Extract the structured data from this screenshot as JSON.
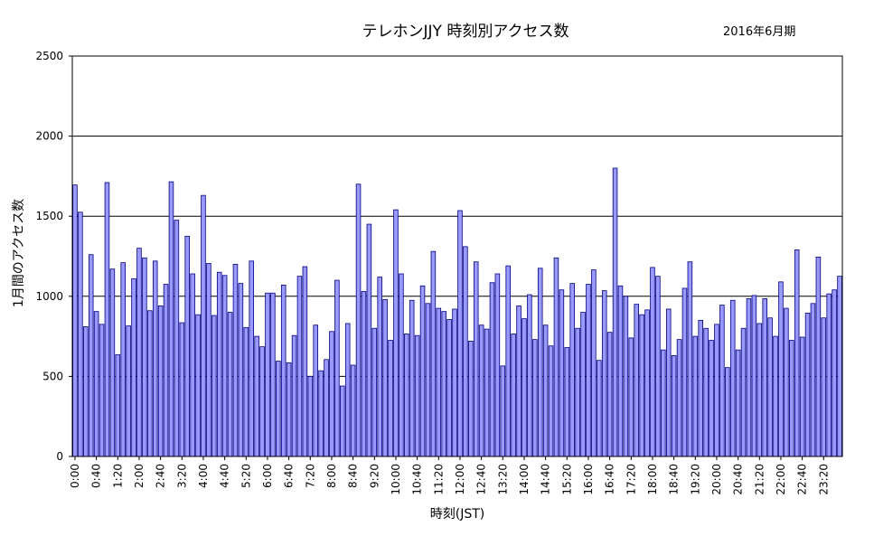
{
  "chart_data": {
    "type": "bar",
    "title": "テレホンJJY 時刻別アクセス数",
    "subtitle": "2016年6月期",
    "xlabel": "時刻(JST)",
    "ylabel": "1月間のアクセス数",
    "ylim": [
      0,
      2500
    ],
    "yticks": [
      0,
      500,
      1000,
      1500,
      2000,
      2500
    ],
    "bar_color": "#9999ff",
    "bar_edge_color": "#000080",
    "grid": true,
    "xtick_labels": [
      "0:00",
      "0:40",
      "1:20",
      "2:00",
      "2:40",
      "3:20",
      "4:00",
      "4:40",
      "5:20",
      "6:00",
      "6:40",
      "7:20",
      "8:00",
      "8:40",
      "9:20",
      "10:00",
      "10:40",
      "11:20",
      "12:00",
      "12:40",
      "13:20",
      "14:00",
      "14:40",
      "15:20",
      "16:00",
      "16:40",
      "17:20",
      "18:00",
      "18:40",
      "19:20",
      "20:00",
      "20:40",
      "21:20",
      "22:00",
      "22:40",
      "23:20"
    ],
    "xtick_every": 4,
    "values": [
      1695,
      1525,
      810,
      1260,
      905,
      825,
      1710,
      1170,
      635,
      1210,
      815,
      1110,
      1300,
      1240,
      910,
      1220,
      940,
      1075,
      1715,
      1475,
      835,
      1375,
      1140,
      885,
      1630,
      1205,
      880,
      1150,
      1130,
      900,
      1200,
      1080,
      805,
      1220,
      750,
      685,
      1020,
      1020,
      595,
      1070,
      585,
      755,
      1125,
      1185,
      500,
      820,
      535,
      605,
      780,
      1100,
      440,
      830,
      570,
      1700,
      1030,
      1450,
      800,
      1120,
      980,
      725,
      1540,
      1140,
      765,
      975,
      755,
      1065,
      955,
      1280,
      925,
      905,
      855,
      920,
      1535,
      1310,
      720,
      1215,
      820,
      795,
      1085,
      1140,
      565,
      1190,
      765,
      940,
      860,
      1010,
      730,
      1175,
      820,
      690,
      1240,
      1040,
      680,
      1080,
      800,
      900,
      1075,
      1165,
      600,
      1035,
      775,
      1800,
      1065,
      1000,
      740,
      950,
      885,
      915,
      1180,
      1125,
      665,
      920,
      630,
      730,
      1050,
      1215,
      750,
      850,
      800,
      725,
      825,
      945,
      555,
      975,
      665,
      800,
      985,
      1005,
      830,
      985,
      865,
      750,
      1090,
      925,
      725,
      1290,
      745,
      895,
      955,
      1245,
      865,
      1015,
      1040,
      1125
    ]
  }
}
